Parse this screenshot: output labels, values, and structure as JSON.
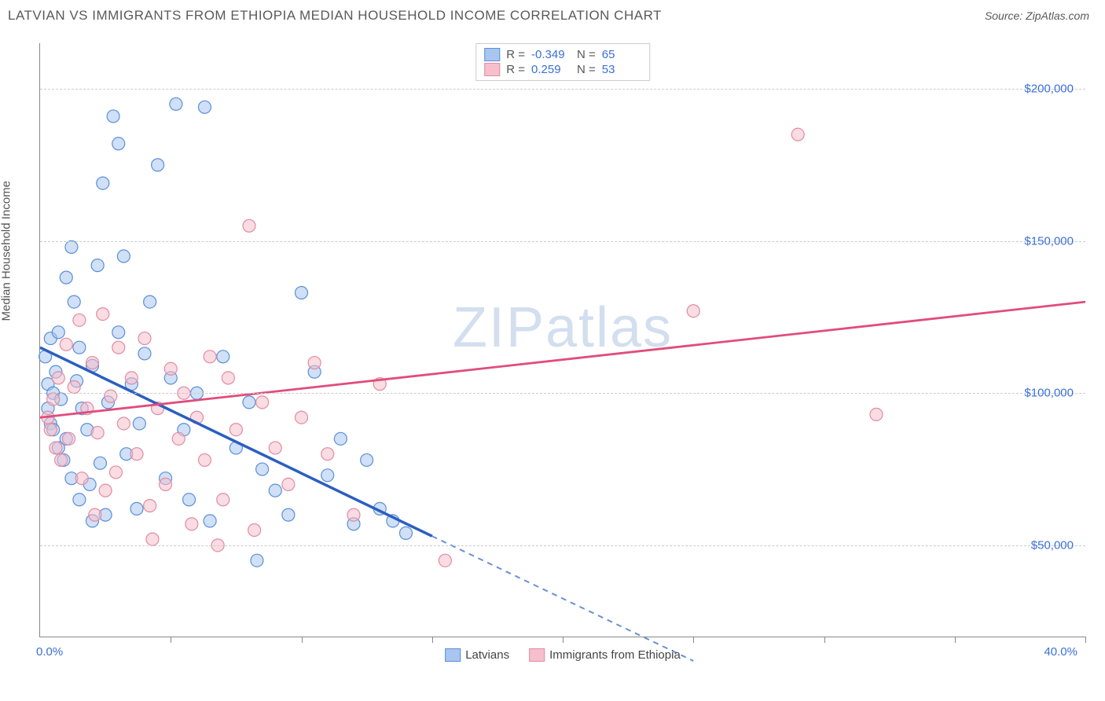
{
  "title": "LATVIAN VS IMMIGRANTS FROM ETHIOPIA MEDIAN HOUSEHOLD INCOME CORRELATION CHART",
  "source": "Source: ZipAtlas.com",
  "ylabel": "Median Household Income",
  "watermark": "ZIPatlas",
  "chart": {
    "type": "scatter-correlation",
    "xlim": [
      0,
      40
    ],
    "ylim": [
      20000,
      215000
    ],
    "x_start_label": "0.0%",
    "x_end_label": "40.0%",
    "ytick_values": [
      50000,
      100000,
      150000,
      200000
    ],
    "ytick_labels": [
      "$50,000",
      "$100,000",
      "$150,000",
      "$200,000"
    ],
    "xtick_positions": [
      5,
      10,
      15,
      20,
      25,
      30,
      35,
      40
    ],
    "grid_color": "#cccccc",
    "background_color": "#ffffff",
    "marker_radius": 8,
    "marker_opacity": 0.55,
    "series": [
      {
        "name": "Latvians",
        "color_fill": "#a8c6f0",
        "color_stroke": "#5b8fd6",
        "line_color": "#2b5fc0",
        "R": "-0.349",
        "N": "65",
        "trend": {
          "x1": 0,
          "y1": 115000,
          "x2": 15,
          "y2": 53000,
          "extend_x2": 25,
          "extend_y2": 12000
        },
        "points": [
          [
            0.2,
            112000
          ],
          [
            0.3,
            95000
          ],
          [
            0.3,
            103000
          ],
          [
            0.4,
            90000
          ],
          [
            0.4,
            118000
          ],
          [
            0.5,
            88000
          ],
          [
            0.5,
            100000
          ],
          [
            0.6,
            107000
          ],
          [
            0.7,
            82000
          ],
          [
            0.7,
            120000
          ],
          [
            0.8,
            98000
          ],
          [
            0.9,
            78000
          ],
          [
            1.0,
            138000
          ],
          [
            1.0,
            85000
          ],
          [
            1.2,
            148000
          ],
          [
            1.2,
            72000
          ],
          [
            1.3,
            130000
          ],
          [
            1.4,
            104000
          ],
          [
            1.5,
            65000
          ],
          [
            1.5,
            115000
          ],
          [
            1.6,
            95000
          ],
          [
            1.8,
            88000
          ],
          [
            1.9,
            70000
          ],
          [
            2.0,
            109000
          ],
          [
            2.2,
            142000
          ],
          [
            2.3,
            77000
          ],
          [
            2.4,
            169000
          ],
          [
            2.5,
            60000
          ],
          [
            2.6,
            97000
          ],
          [
            2.8,
            191000
          ],
          [
            3.0,
            120000
          ],
          [
            3.0,
            182000
          ],
          [
            3.2,
            145000
          ],
          [
            3.3,
            80000
          ],
          [
            3.5,
            103000
          ],
          [
            3.8,
            90000
          ],
          [
            4.0,
            113000
          ],
          [
            4.2,
            130000
          ],
          [
            4.5,
            175000
          ],
          [
            4.8,
            72000
          ],
          [
            5.0,
            105000
          ],
          [
            5.2,
            195000
          ],
          [
            5.5,
            88000
          ],
          [
            5.7,
            65000
          ],
          [
            6.0,
            100000
          ],
          [
            6.3,
            194000
          ],
          [
            6.5,
            58000
          ],
          [
            7.0,
            112000
          ],
          [
            7.5,
            82000
          ],
          [
            8.0,
            97000
          ],
          [
            8.3,
            45000
          ],
          [
            8.5,
            75000
          ],
          [
            9.0,
            68000
          ],
          [
            9.5,
            60000
          ],
          [
            10.0,
            133000
          ],
          [
            10.5,
            107000
          ],
          [
            11.0,
            73000
          ],
          [
            11.5,
            85000
          ],
          [
            12.0,
            57000
          ],
          [
            13.0,
            62000
          ],
          [
            13.5,
            58000
          ],
          [
            14.0,
            54000
          ],
          [
            12.5,
            78000
          ],
          [
            3.7,
            62000
          ],
          [
            2.0,
            58000
          ]
        ]
      },
      {
        "name": "Immigrants from Ethiopia",
        "color_fill": "#f5c0cc",
        "color_stroke": "#e28ba2",
        "line_color": "#e04d7b",
        "R": "0.259",
        "N": "53",
        "trend": {
          "x1": 0,
          "y1": 92000,
          "x2": 40,
          "y2": 130000
        },
        "points": [
          [
            0.3,
            92000
          ],
          [
            0.4,
            88000
          ],
          [
            0.5,
            98000
          ],
          [
            0.6,
            82000
          ],
          [
            0.7,
            105000
          ],
          [
            0.8,
            78000
          ],
          [
            1.0,
            116000
          ],
          [
            1.1,
            85000
          ],
          [
            1.3,
            102000
          ],
          [
            1.5,
            124000
          ],
          [
            1.6,
            72000
          ],
          [
            1.8,
            95000
          ],
          [
            2.0,
            110000
          ],
          [
            2.2,
            87000
          ],
          [
            2.4,
            126000
          ],
          [
            2.5,
            68000
          ],
          [
            2.7,
            99000
          ],
          [
            2.9,
            74000
          ],
          [
            3.0,
            115000
          ],
          [
            3.2,
            90000
          ],
          [
            3.5,
            105000
          ],
          [
            3.7,
            80000
          ],
          [
            4.0,
            118000
          ],
          [
            4.2,
            63000
          ],
          [
            4.5,
            95000
          ],
          [
            4.8,
            70000
          ],
          [
            5.0,
            108000
          ],
          [
            5.3,
            85000
          ],
          [
            5.5,
            100000
          ],
          [
            5.8,
            57000
          ],
          [
            6.0,
            92000
          ],
          [
            6.3,
            78000
          ],
          [
            6.5,
            112000
          ],
          [
            7.0,
            65000
          ],
          [
            7.2,
            105000
          ],
          [
            7.5,
            88000
          ],
          [
            8.0,
            155000
          ],
          [
            8.2,
            55000
          ],
          [
            8.5,
            97000
          ],
          [
            9.0,
            82000
          ],
          [
            9.5,
            70000
          ],
          [
            10.0,
            92000
          ],
          [
            10.5,
            110000
          ],
          [
            11.0,
            80000
          ],
          [
            12.0,
            60000
          ],
          [
            13.0,
            103000
          ],
          [
            15.5,
            45000
          ],
          [
            25.0,
            127000
          ],
          [
            29.0,
            185000
          ],
          [
            32.0,
            93000
          ],
          [
            6.8,
            50000
          ],
          [
            4.3,
            52000
          ],
          [
            2.1,
            60000
          ]
        ]
      }
    ]
  },
  "legend": {
    "series1": "Latvians",
    "series2": "Immigrants from Ethiopia"
  }
}
